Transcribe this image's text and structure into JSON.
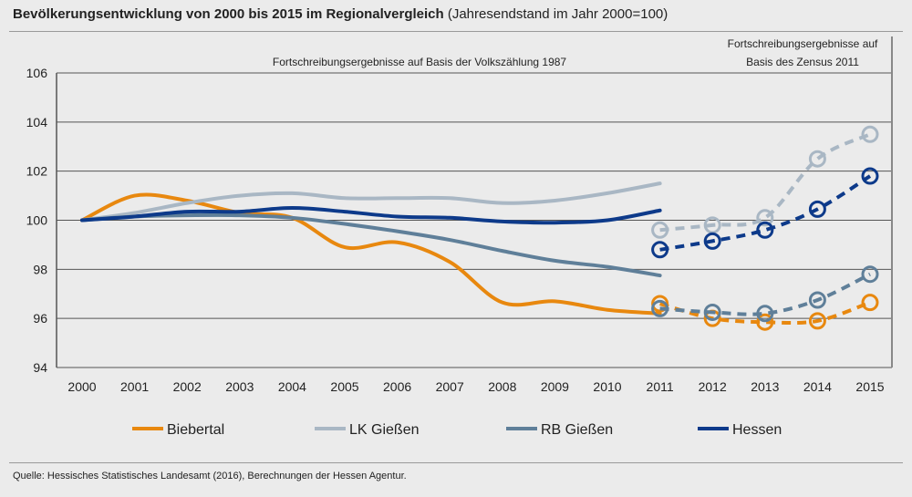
{
  "chart_data": {
    "type": "line",
    "title": "Bevölkerungsentwicklung von 2000 bis 2015 im Regionalvergleich",
    "subtitle": "(Jahresendstand im Jahr 2000=100)",
    "annotations": [
      "Fortschreibungsergebnisse auf Basis der Volkszählung 1987",
      "Fortschreibungsergebnisse auf",
      "Basis des Zensus 2011"
    ],
    "source": "Quelle: Hessisches Statistisches Landesamt (2016), Berechnungen der Hessen Agentur.",
    "x": [
      "2000",
      "2001",
      "2002",
      "2003",
      "2004",
      "2005",
      "2006",
      "2007",
      "2008",
      "2009",
      "2010",
      "2011",
      "2012",
      "2013",
      "2014",
      "2015"
    ],
    "yticks": [
      "94",
      "96",
      "98",
      "100",
      "102",
      "104",
      "106"
    ],
    "ylim": [
      94,
      106
    ],
    "grid": "horizontal",
    "legend_placement": "bottom",
    "series": [
      {
        "name": "Biebertal",
        "color": "#e8880f",
        "volkszaehlung": [
          100,
          101.0,
          100.8,
          100.3,
          100.1,
          98.9,
          99.1,
          98.3,
          96.65,
          96.7,
          96.35,
          96.2
        ],
        "zensus": {
          "x": [
            "2011",
            "2012",
            "2013",
            "2014",
            "2015"
          ],
          "values": [
            96.6,
            96.0,
            95.85,
            95.9,
            96.65
          ]
        }
      },
      {
        "name": "LK Gießen",
        "color": "#a9b7c4",
        "volkszaehlung": [
          100,
          100.3,
          100.7,
          101.0,
          101.1,
          100.9,
          100.9,
          100.9,
          100.7,
          100.8,
          101.1,
          101.5
        ],
        "zensus": {
          "x": [
            "2011",
            "2012",
            "2013",
            "2014",
            "2015"
          ],
          "values": [
            99.6,
            99.8,
            100.1,
            102.5,
            103.5
          ]
        }
      },
      {
        "name": "RB Gießen",
        "color": "#5f7f99",
        "volkszaehlung": [
          100,
          100.15,
          100.2,
          100.2,
          100.1,
          99.85,
          99.55,
          99.2,
          98.75,
          98.35,
          98.1,
          97.75
        ],
        "zensus": {
          "x": [
            "2011",
            "2012",
            "2013",
            "2014",
            "2015"
          ],
          "values": [
            96.4,
            96.25,
            96.2,
            96.75,
            97.8
          ]
        }
      },
      {
        "name": "Hessen",
        "color": "#0d3a8a",
        "volkszaehlung": [
          100,
          100.15,
          100.35,
          100.35,
          100.5,
          100.35,
          100.15,
          100.1,
          99.95,
          99.9,
          100.0,
          100.4
        ],
        "zensus": {
          "x": [
            "2011",
            "2012",
            "2013",
            "2014",
            "2015"
          ],
          "values": [
            98.8,
            99.15,
            99.6,
            100.45,
            101.8
          ]
        }
      }
    ]
  }
}
